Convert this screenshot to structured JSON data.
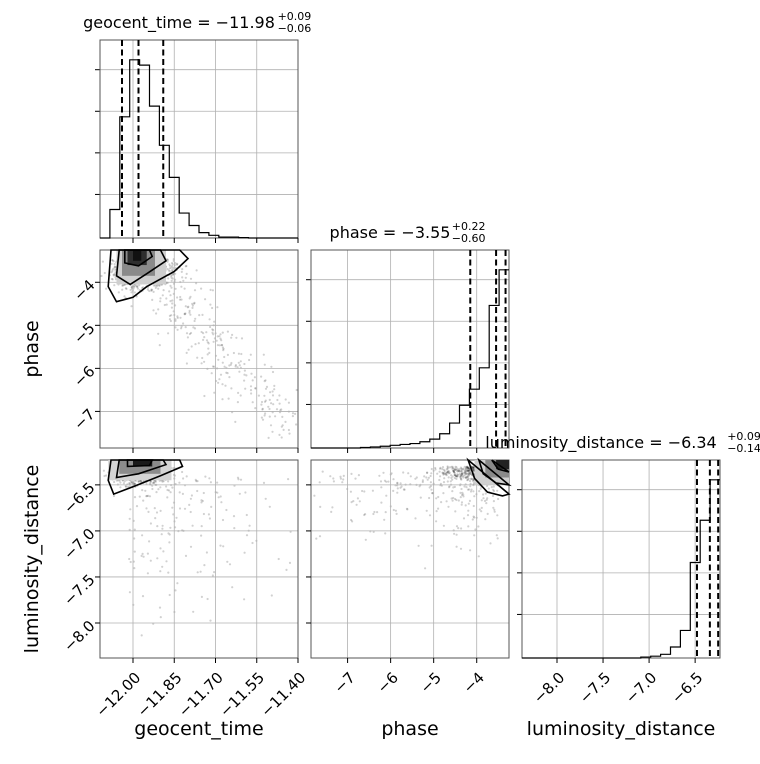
{
  "chart_data": {
    "type": "corner",
    "parameters": [
      "geocent_time",
      "phase",
      "luminosity_distance"
    ],
    "titles": [
      {
        "param": "geocent_time",
        "text": "geocent_time = −11.98",
        "plus": "+0.09",
        "minus": "−0.06"
      },
      {
        "param": "phase",
        "text": "phase = −3.55",
        "plus": "+0.22",
        "minus": "−0.60"
      },
      {
        "param": "luminosity_distance",
        "text": "luminosity_distance = −6.34",
        "plus": "+0.09",
        "minus": "−0.14"
      }
    ],
    "ranges": {
      "geocent_time": [
        -12.12,
        -11.4
      ],
      "phase": [
        -7.85,
        -3.25
      ],
      "luminosity_distance": [
        -8.38,
        -6.23
      ]
    },
    "ticks": {
      "geocent_time": [
        -12.0,
        -11.85,
        -11.7,
        -11.55,
        -11.4
      ],
      "phase": [
        -7,
        -6,
        -5,
        -4
      ],
      "luminosity_distance": [
        -8.0,
        -7.5,
        -7.0,
        -6.5
      ]
    },
    "tick_labels": {
      "geocent_time": [
        "−12.00",
        "−11.85",
        "−11.70",
        "−11.55",
        "−11.40"
      ],
      "phase": [
        "−7",
        "−6",
        "−5",
        "−4"
      ],
      "luminosity_distance": [
        "−8.0",
        "−7.5",
        "−7.0",
        "−6.5"
      ]
    },
    "histograms": {
      "geocent_time": {
        "bin_start": -12.12,
        "bin_width": 0.036,
        "counts": [
          0.0,
          0.16,
          0.68,
          1.0,
          0.97,
          0.74,
          0.52,
          0.34,
          0.14,
          0.07,
          0.03,
          0.015,
          0.005,
          0.005,
          0.002,
          0.0,
          0.0,
          0.0,
          0.0,
          0.0
        ],
        "quantiles": [
          -12.04,
          -11.98,
          -11.89
        ]
      },
      "phase": {
        "bin_start": -7.85,
        "bin_width": 0.23,
        "counts": [
          0.0,
          0.0,
          0.0,
          0.0,
          0.0,
          0.003,
          0.006,
          0.01,
          0.015,
          0.02,
          0.025,
          0.035,
          0.05,
          0.08,
          0.14,
          0.24,
          0.33,
          0.45,
          0.8,
          1.0
        ],
        "quantiles": [
          -4.15,
          -3.55,
          -3.33
        ]
      },
      "luminosity_distance": {
        "bin_start": -8.38,
        "bin_width": 0.1075,
        "counts": [
          0.0,
          0.0,
          0.0,
          0.0,
          0.0,
          0.0,
          0.0,
          0.0,
          0.0,
          0.0,
          0.0,
          0.0,
          0.005,
          0.01,
          0.02,
          0.06,
          0.15,
          0.52,
          0.75,
          0.97
        ],
        "quantiles": [
          -6.48,
          -6.34,
          -6.25
        ]
      }
    },
    "grid": true
  }
}
